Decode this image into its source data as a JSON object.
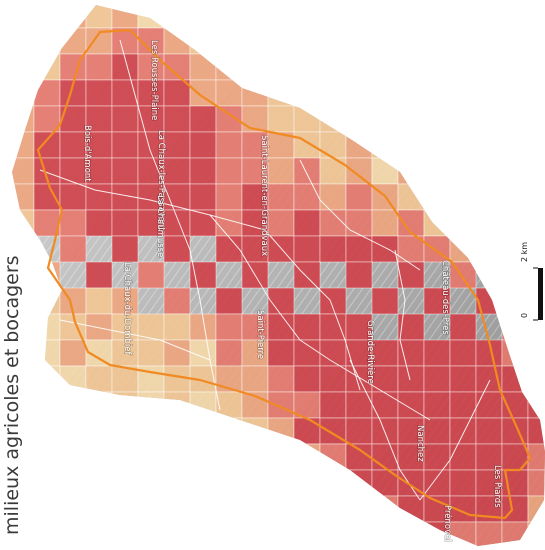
{
  "map": {
    "title": "milieux agricoles et bocagers",
    "scale_bar": {
      "zero_label": "0",
      "end_label": "2 km"
    },
    "communes": [
      {
        "name": "Les Rousses-Plaine"
      },
      {
        "name": "La Chaux-les-Passavant"
      },
      {
        "name": "Bois-d'Amont"
      },
      {
        "name": "La Chaumusse"
      },
      {
        "name": "Saint-Laurent-en-Grandvaux"
      },
      {
        "name": "La Chaux-du-Dombief"
      },
      {
        "name": "Saint-Pierre"
      },
      {
        "name": "Grande-Rivière"
      },
      {
        "name": "Château-des-Prés"
      },
      {
        "name": "Nanchez"
      },
      {
        "name": "Les Piards"
      },
      {
        "name": "Prénovel"
      }
    ],
    "colors": {
      "outline": "#f08a22",
      "commune_borders": "#ffffff",
      "grid_lines": "#ffffff",
      "classes": [
        "#f5d9a8",
        "#f2c592",
        "#eea47d",
        "#e5776a",
        "#cf3f47"
      ]
    }
  }
}
